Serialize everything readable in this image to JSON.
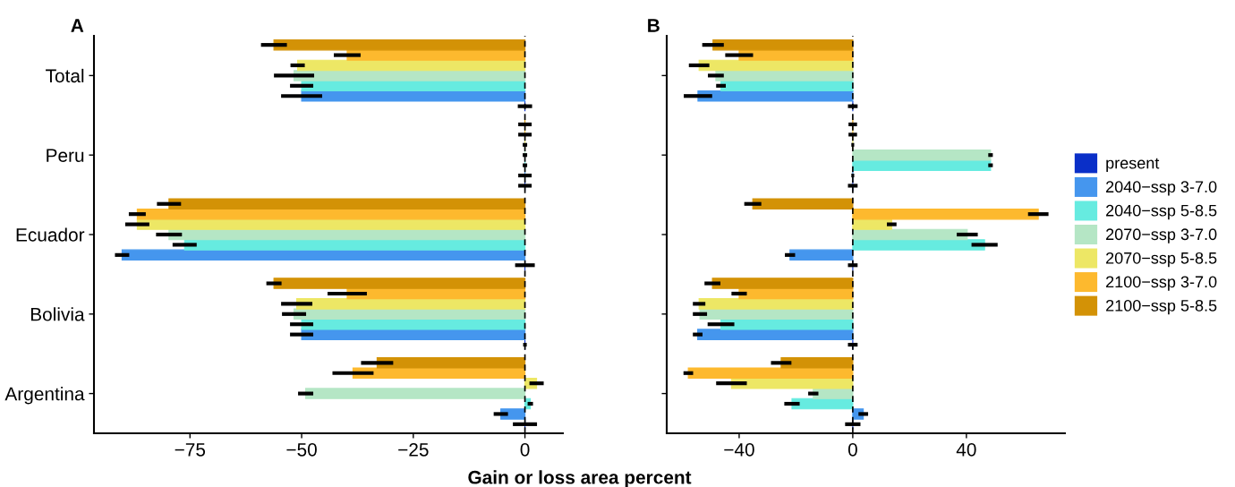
{
  "chart_data": [
    {
      "type": "bar",
      "title": "A",
      "orientation": "horizontal",
      "xlabel": "Gain or loss area percent",
      "categories": [
        "Total",
        "Peru",
        "Ecuador",
        "Bolivia",
        "Argentina"
      ],
      "xlim": [
        -96.5,
        8.5
      ],
      "xticks": [
        {
          "value": -75,
          "label": "−75"
        },
        {
          "value": -50,
          "label": "−50"
        },
        {
          "value": -25,
          "label": "−25"
        },
        0
      ],
      "ref_lines": [
        {
          "axis": "x",
          "value": 0,
          "line_style": "dashed",
          "color": "#000000"
        }
      ],
      "grid": false,
      "series": [
        {
          "color": "#0a2fc8",
          "values": [
            0,
            0,
            0,
            0,
            0
          ],
          "errors": [
            1.6,
            1.5,
            2.2,
            0.4,
            2.7
          ]
        },
        {
          "color": "#4596ee",
          "values": [
            -50,
            0,
            -90.2,
            -50,
            -5.4
          ],
          "errors": [
            4.6,
            1.5,
            1.6,
            2.6,
            1.6
          ]
        },
        {
          "color": "#66ebe0",
          "values": [
            -50,
            0,
            -76.2,
            -50,
            1.2
          ],
          "errors": [
            2.6,
            0.5,
            2.7,
            2.6,
            0.6
          ]
        },
        {
          "color": "#b5e6c5",
          "values": [
            -51.7,
            0,
            -79.7,
            -51.7,
            -49.1
          ],
          "errors": [
            4.5,
            0.5,
            2.9,
            2.7,
            1.7
          ]
        },
        {
          "color": "#ede765",
          "values": [
            -50.9,
            0,
            -86.8,
            -51.1,
            2.6
          ],
          "errors": [
            1.6,
            0.5,
            2.7,
            3.5,
            1.6
          ]
        },
        {
          "color": "#fdb92e",
          "values": [
            -39.8,
            0,
            -86.8,
            -39.8,
            -38.5
          ],
          "errors": [
            3,
            1.5,
            1.9,
            4.4,
            4.6
          ]
        },
        {
          "color": "#d39206",
          "values": [
            -56.2,
            0,
            -79.7,
            -56.2,
            -33.1
          ],
          "errors": [
            2.9,
            1.5,
            2.7,
            1.7,
            3.6
          ]
        }
      ]
    },
    {
      "type": "bar",
      "title": "B",
      "orientation": "horizontal",
      "categories": [
        null,
        null,
        null,
        null,
        null
      ],
      "xlim": [
        -65.5,
        74.7
      ],
      "xticks": [
        {
          "value": -40,
          "label": "−40"
        },
        0,
        40
      ],
      "ref_lines": [
        {
          "axis": "x",
          "value": 0,
          "line_style": "dashed",
          "color": "#000000"
        }
      ],
      "grid": false,
      "legend": "right",
      "series": [
        {
          "name": "present",
          "color": "#0a2fc8",
          "values": [
            0,
            0,
            0,
            0,
            0
          ],
          "errors": [
            1.7,
            1.7,
            1.7,
            1.7,
            2.7
          ]
        },
        {
          "name": "2040−ssp 3-7.0",
          "color": "#4596ee",
          "values": [
            -54.5,
            0,
            -22.1,
            -54.6,
            3.7
          ],
          "errors": [
            5,
            0.5,
            1.8,
            1.7,
            1.7
          ]
        },
        {
          "name": "2040−ssp 5-8.5",
          "color": "#66ebe0",
          "values": [
            -46.4,
            48.5,
            46.4,
            -46.4,
            -21.4
          ],
          "errors": [
            1.7,
            0.8,
            4.6,
            4.7,
            2.7
          ]
        },
        {
          "name": "2070−ssp 3-7.0",
          "color": "#b5e6c5",
          "values": [
            -48.2,
            48.5,
            40.3,
            -53.8,
            -13.9
          ],
          "errors": [
            2.8,
            0.8,
            3.7,
            2.5,
            1.8
          ]
        },
        {
          "name": "2070−ssp 5-8.5",
          "color": "#ede765",
          "values": [
            -54.1,
            0,
            13.7,
            -54.1,
            -42.7
          ],
          "errors": [
            3.6,
            0.5,
            1.7,
            2.2,
            5.4
          ]
        },
        {
          "name": "2100−ssp 3-7.0",
          "color": "#fdb92e",
          "values": [
            -40,
            0,
            65.3,
            -40,
            -57.9
          ],
          "errors": [
            4.9,
            1.5,
            3.6,
            2.7,
            1.7
          ]
        },
        {
          "name": "2100−ssp 5-8.5",
          "color": "#d39206",
          "values": [
            -49.2,
            0,
            -35.2,
            -49.4,
            -25.2
          ],
          "errors": [
            3.8,
            1.5,
            3,
            2.8,
            3.6
          ]
        }
      ]
    }
  ]
}
